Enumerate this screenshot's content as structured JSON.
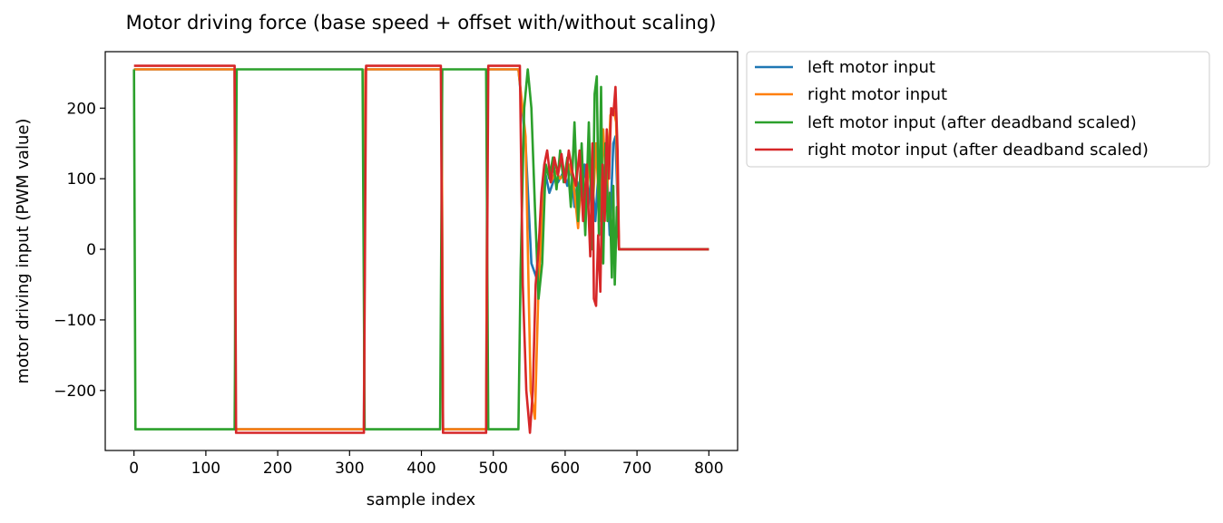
{
  "chart_data": {
    "type": "line",
    "title": "Motor driving force (base speed + offset with/without scaling)",
    "xlabel": "sample index",
    "ylabel": "motor driving input (PWM value)",
    "xlim": [
      -40,
      840
    ],
    "ylim": [
      -285,
      280
    ],
    "xticks": [
      0,
      100,
      200,
      300,
      400,
      500,
      600,
      700,
      800
    ],
    "yticks": [
      -200,
      -100,
      0,
      100,
      200
    ],
    "tick_labels": {
      "x": [
        "0",
        "100",
        "200",
        "300",
        "400",
        "500",
        "600",
        "700",
        "800"
      ],
      "y": [
        "−200",
        "−100",
        "0",
        "100",
        "200"
      ]
    },
    "grid": false,
    "legend_placement": "outside-upper-right",
    "series": [
      {
        "name": "left motor input",
        "color": "#1f77b4",
        "points": [
          [
            0,
            255
          ],
          [
            140,
            255
          ],
          [
            141,
            -255
          ],
          [
            320,
            -255
          ],
          [
            322,
            255
          ],
          [
            428,
            255
          ],
          [
            430,
            -255
          ],
          [
            490,
            -255
          ],
          [
            492,
            255
          ],
          [
            535,
            255
          ],
          [
            545,
            150
          ],
          [
            553,
            -20
          ],
          [
            560,
            -40
          ],
          [
            565,
            30
          ],
          [
            572,
            110
          ],
          [
            578,
            80
          ],
          [
            585,
            100
          ],
          [
            590,
            95
          ],
          [
            598,
            110
          ],
          [
            603,
            90
          ],
          [
            608,
            120
          ],
          [
            613,
            60
          ],
          [
            617,
            95
          ],
          [
            622,
            70
          ],
          [
            627,
            120
          ],
          [
            632,
            60
          ],
          [
            637,
            110
          ],
          [
            642,
            40
          ],
          [
            647,
            120
          ],
          [
            652,
            50
          ],
          [
            657,
            140
          ],
          [
            662,
            20
          ],
          [
            667,
            150
          ],
          [
            670,
            160
          ],
          [
            675,
            0
          ],
          [
            800,
            0
          ]
        ]
      },
      {
        "name": "right motor input",
        "color": "#ff7f0e",
        "points": [
          [
            0,
            255
          ],
          [
            140,
            255
          ],
          [
            141,
            -255
          ],
          [
            320,
            -255
          ],
          [
            322,
            255
          ],
          [
            428,
            255
          ],
          [
            430,
            -255
          ],
          [
            490,
            -255
          ],
          [
            492,
            255
          ],
          [
            535,
            255
          ],
          [
            545,
            160
          ],
          [
            552,
            -200
          ],
          [
            558,
            -240
          ],
          [
            563,
            -50
          ],
          [
            568,
            40
          ],
          [
            573,
            120
          ],
          [
            580,
            95
          ],
          [
            587,
            110
          ],
          [
            593,
            100
          ],
          [
            600,
            110
          ],
          [
            606,
            120
          ],
          [
            612,
            90
          ],
          [
            618,
            30
          ],
          [
            623,
            110
          ],
          [
            628,
            40
          ],
          [
            633,
            130
          ],
          [
            638,
            50
          ],
          [
            643,
            150
          ],
          [
            648,
            40
          ],
          [
            653,
            170
          ],
          [
            658,
            70
          ],
          [
            663,
            190
          ],
          [
            667,
            200
          ],
          [
            671,
            180
          ],
          [
            675,
            0
          ],
          [
            800,
            0
          ]
        ]
      },
      {
        "name": "left motor input (after deadband scaled)",
        "color": "#2ca02c",
        "points": [
          [
            0,
            255
          ],
          [
            2,
            -255
          ],
          [
            140,
            -255
          ],
          [
            143,
            255
          ],
          [
            318,
            255
          ],
          [
            321,
            -255
          ],
          [
            426,
            -255
          ],
          [
            429,
            255
          ],
          [
            490,
            255
          ],
          [
            493,
            -255
          ],
          [
            535,
            -255
          ],
          [
            538,
            -30
          ],
          [
            543,
            200
          ],
          [
            548,
            255
          ],
          [
            553,
            200
          ],
          [
            558,
            60
          ],
          [
            563,
            -70
          ],
          [
            568,
            -20
          ],
          [
            573,
            120
          ],
          [
            578,
            100
          ],
          [
            583,
            130
          ],
          [
            588,
            85
          ],
          [
            593,
            140
          ],
          [
            598,
            95
          ],
          [
            603,
            130
          ],
          [
            608,
            60
          ],
          [
            613,
            180
          ],
          [
            618,
            40
          ],
          [
            623,
            150
          ],
          [
            628,
            20
          ],
          [
            633,
            180
          ],
          [
            638,
            0
          ],
          [
            641,
            220
          ],
          [
            644,
            245
          ],
          [
            647,
            20
          ],
          [
            650,
            230
          ],
          [
            653,
            -20
          ],
          [
            656,
            150
          ],
          [
            659,
            40
          ],
          [
            662,
            80
          ],
          [
            665,
            -40
          ],
          [
            667,
            90
          ],
          [
            669,
            -50
          ],
          [
            672,
            60
          ],
          [
            675,
            0
          ],
          [
            800,
            0
          ]
        ]
      },
      {
        "name": "right motor input (after deadband scaled)",
        "color": "#d62728",
        "points": [
          [
            0,
            260
          ],
          [
            140,
            260
          ],
          [
            142,
            -260
          ],
          [
            320,
            -260
          ],
          [
            323,
            260
          ],
          [
            427,
            260
          ],
          [
            430,
            -260
          ],
          [
            490,
            -260
          ],
          [
            493,
            260
          ],
          [
            537,
            260
          ],
          [
            541,
            -50
          ],
          [
            546,
            -200
          ],
          [
            551,
            -260
          ],
          [
            555,
            -200
          ],
          [
            559,
            -50
          ],
          [
            563,
            0
          ],
          [
            567,
            80
          ],
          [
            571,
            120
          ],
          [
            575,
            140
          ],
          [
            580,
            95
          ],
          [
            585,
            130
          ],
          [
            590,
            105
          ],
          [
            595,
            135
          ],
          [
            600,
            95
          ],
          [
            605,
            140
          ],
          [
            610,
            110
          ],
          [
            615,
            90
          ],
          [
            620,
            140
          ],
          [
            625,
            40
          ],
          [
            630,
            120
          ],
          [
            635,
            -10
          ],
          [
            638,
            150
          ],
          [
            640,
            -70
          ],
          [
            643,
            -80
          ],
          [
            646,
            20
          ],
          [
            649,
            -60
          ],
          [
            652,
            120
          ],
          [
            655,
            40
          ],
          [
            658,
            170
          ],
          [
            661,
            100
          ],
          [
            664,
            200
          ],
          [
            667,
            190
          ],
          [
            670,
            230
          ],
          [
            673,
            140
          ],
          [
            675,
            0
          ],
          [
            800,
            0
          ]
        ]
      }
    ]
  }
}
